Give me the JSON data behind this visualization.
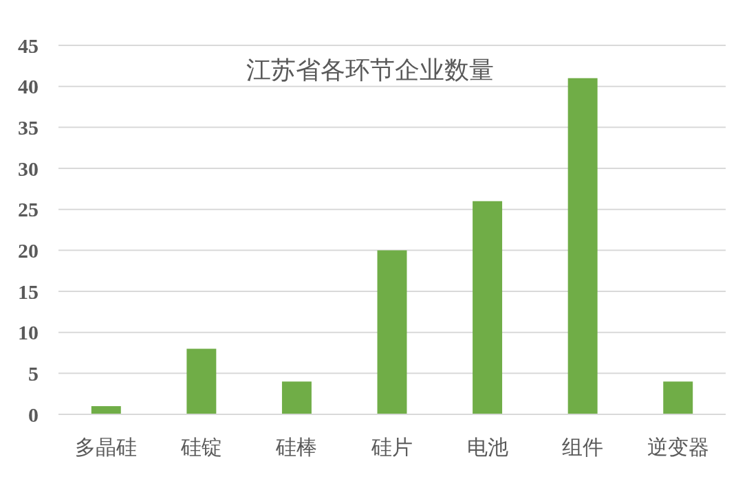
{
  "chart_data": {
    "type": "bar",
    "title": "江苏省各环节企业数量",
    "categories": [
      "多晶硅",
      "硅锭",
      "硅棒",
      "硅片",
      "电池",
      "组件",
      "逆变器"
    ],
    "values": [
      1,
      8,
      4,
      20,
      26,
      41,
      4
    ],
    "color": "#70ad47",
    "ylim": [
      0,
      45
    ],
    "yticks": [
      0,
      5,
      10,
      15,
      20,
      25,
      30,
      35,
      40,
      45
    ],
    "grid": "y"
  }
}
